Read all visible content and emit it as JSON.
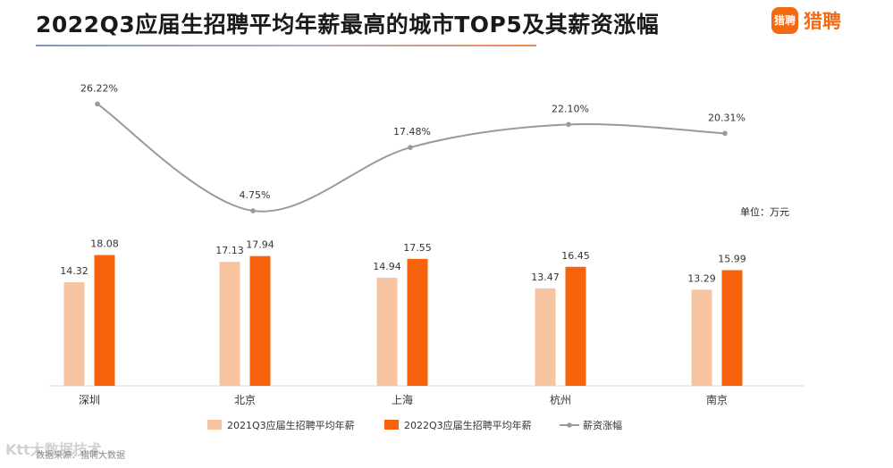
{
  "header": {
    "title": "2022Q3应届生招聘平均年薪最高的城市TOP5及其薪资涨幅",
    "brand_badge": "猎聘",
    "brand_name": "猎聘"
  },
  "unit_label": "单位：万元",
  "watermark": "Ktt大数据技术",
  "watermark_sub": "数据来源：猎聘大数据",
  "colors": {
    "series_2021": "#f7c4a2",
    "series_2022": "#f7630c",
    "growth_line": "#9a9a9a"
  },
  "chart_data": {
    "type": "bar",
    "title": "2022Q3应届生招聘平均年薪最高的城市TOP5及其薪资涨幅",
    "categories": [
      "深圳",
      "北京",
      "上海",
      "杭州",
      "南京"
    ],
    "series": [
      {
        "name": "2021Q3应届生招聘平均年薪",
        "values": [
          14.32,
          17.13,
          14.94,
          13.47,
          13.29
        ]
      },
      {
        "name": "2022Q3应届生招聘平均年薪",
        "values": [
          18.08,
          17.94,
          17.55,
          16.45,
          15.99
        ]
      }
    ],
    "line_series": {
      "name": "薪资涨幅",
      "type": "line",
      "values": [
        26.22,
        4.75,
        17.48,
        22.1,
        20.31
      ],
      "labels": [
        "26.22%",
        "4.75%",
        "17.48%",
        "22.10%",
        "20.31%"
      ]
    },
    "ylabel": "万元",
    "ylim": [
      0,
      25
    ],
    "grid": false,
    "legend": "bottom"
  }
}
